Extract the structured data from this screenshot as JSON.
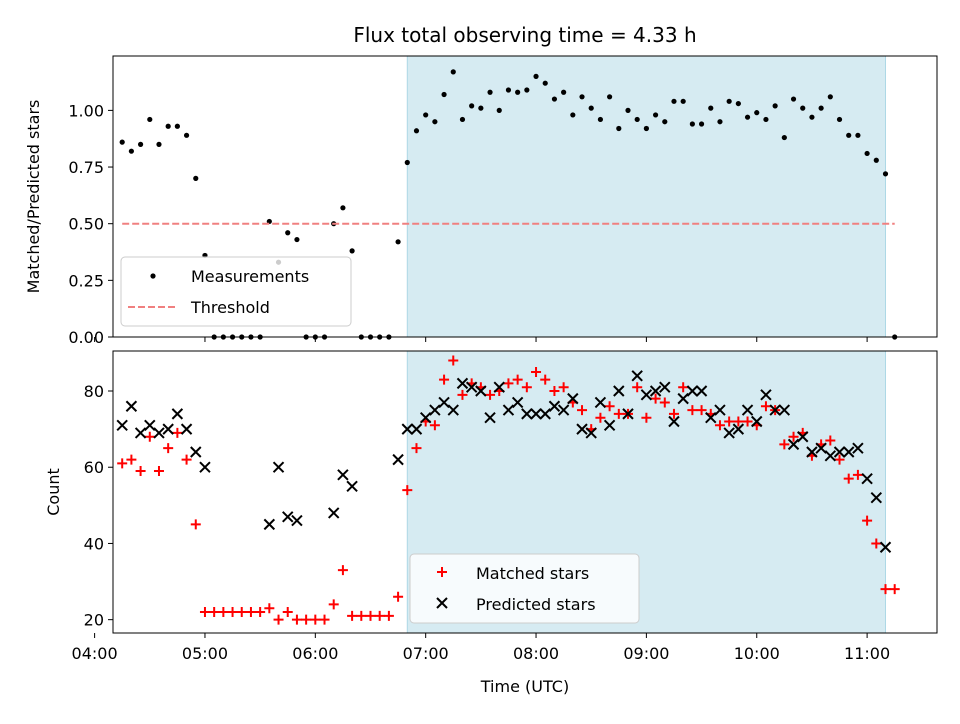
{
  "chart_data": [
    {
      "type": "scatter",
      "title": "Flux total observing time = 4.33 h",
      "xlabel": "",
      "ylabel": "Matched/Predicted stars",
      "xlim": [
        "04:10",
        "11:38"
      ],
      "ylim": [
        0,
        1.24
      ],
      "yticks": [
        "0.00",
        "0.25",
        "0.50",
        "0.75",
        "1.00"
      ],
      "shaded_interval": [
        "06:50",
        "11:10"
      ],
      "shade_color": "#add8e6",
      "legend": {
        "placement": "lower-left",
        "entries": [
          "Measurements",
          "Threshold"
        ]
      },
      "series": [
        {
          "name": "Measurements",
          "marker": "dot",
          "color": "#000000",
          "points": [
            [
              "04:15",
              0.86
            ],
            [
              "04:20",
              0.82
            ],
            [
              "04:25",
              0.85
            ],
            [
              "04:30",
              0.96
            ],
            [
              "04:35",
              0.85
            ],
            [
              "04:40",
              0.93
            ],
            [
              "04:45",
              0.93
            ],
            [
              "04:50",
              0.89
            ],
            [
              "04:55",
              0.7
            ],
            [
              "05:00",
              0.36
            ],
            [
              "05:05",
              0.0
            ],
            [
              "05:10",
              0.0
            ],
            [
              "05:15",
              0.0
            ],
            [
              "05:20",
              0.0
            ],
            [
              "05:25",
              0.0
            ],
            [
              "05:30",
              0.0
            ],
            [
              "05:35",
              0.51
            ],
            [
              "05:40",
              0.33
            ],
            [
              "05:45",
              0.46
            ],
            [
              "05:50",
              0.43
            ],
            [
              "05:55",
              0.0
            ],
            [
              "06:00",
              0.0
            ],
            [
              "06:05",
              0.0
            ],
            [
              "06:10",
              0.5
            ],
            [
              "06:15",
              0.57
            ],
            [
              "06:20",
              0.38
            ],
            [
              "06:25",
              0.0
            ],
            [
              "06:30",
              0.0
            ],
            [
              "06:35",
              0.0
            ],
            [
              "06:40",
              0.0
            ],
            [
              "06:45",
              0.42
            ],
            [
              "06:50",
              0.77
            ],
            [
              "06:55",
              0.91
            ],
            [
              "07:00",
              0.98
            ],
            [
              "07:05",
              0.95
            ],
            [
              "07:10",
              1.07
            ],
            [
              "07:15",
              1.17
            ],
            [
              "07:20",
              0.96
            ],
            [
              "07:25",
              1.02
            ],
            [
              "07:30",
              1.01
            ],
            [
              "07:35",
              1.08
            ],
            [
              "07:40",
              1.0
            ],
            [
              "07:45",
              1.09
            ],
            [
              "07:50",
              1.08
            ],
            [
              "07:55",
              1.09
            ],
            [
              "08:00",
              1.15
            ],
            [
              "08:05",
              1.12
            ],
            [
              "08:10",
              1.05
            ],
            [
              "08:15",
              1.08
            ],
            [
              "08:20",
              0.98
            ],
            [
              "08:25",
              1.06
            ],
            [
              "08:30",
              1.01
            ],
            [
              "08:35",
              0.96
            ],
            [
              "08:40",
              1.06
            ],
            [
              "08:45",
              0.92
            ],
            [
              "08:50",
              1.0
            ],
            [
              "08:55",
              0.96
            ],
            [
              "09:00",
              0.92
            ],
            [
              "09:05",
              0.98
            ],
            [
              "09:10",
              0.95
            ],
            [
              "09:15",
              1.04
            ],
            [
              "09:20",
              1.04
            ],
            [
              "09:25",
              0.94
            ],
            [
              "09:30",
              0.94
            ],
            [
              "09:35",
              1.01
            ],
            [
              "09:40",
              0.95
            ],
            [
              "09:45",
              1.04
            ],
            [
              "09:50",
              1.03
            ],
            [
              "09:55",
              0.97
            ],
            [
              "10:00",
              0.99
            ],
            [
              "10:05",
              0.96
            ],
            [
              "10:10",
              1.02
            ],
            [
              "10:15",
              0.88
            ],
            [
              "10:20",
              1.05
            ],
            [
              "10:25",
              1.01
            ],
            [
              "10:30",
              0.97
            ],
            [
              "10:35",
              1.01
            ],
            [
              "10:40",
              1.06
            ],
            [
              "10:45",
              0.96
            ],
            [
              "10:50",
              0.89
            ],
            [
              "10:55",
              0.89
            ],
            [
              "11:00",
              0.81
            ],
            [
              "11:05",
              0.78
            ],
            [
              "11:10",
              0.72
            ],
            [
              "11:15",
              0.0
            ]
          ]
        },
        {
          "name": "Threshold",
          "type": "line",
          "style": "dashed",
          "color": "#f08080",
          "points": [
            [
              "04:15",
              0.5
            ],
            [
              "11:15",
              0.5
            ]
          ]
        }
      ]
    },
    {
      "type": "scatter",
      "title": "",
      "xlabel": "Time (UTC)",
      "ylabel": "Count",
      "xlim": [
        "04:10",
        "11:38"
      ],
      "ylim": [
        16.5,
        90.5
      ],
      "yticks": [
        "20",
        "40",
        "60",
        "80"
      ],
      "xticks": [
        "04:00",
        "05:00",
        "06:00",
        "07:00",
        "08:00",
        "09:00",
        "10:00",
        "11:00"
      ],
      "shaded_interval": [
        "06:50",
        "11:10"
      ],
      "shade_color": "#add8e6",
      "legend": {
        "placement": "lower-center",
        "entries": [
          "Matched stars",
          "Predicted stars"
        ]
      },
      "series": [
        {
          "name": "Matched stars",
          "marker": "plus",
          "color": "#ff0000",
          "points": [
            [
              "04:15",
              61
            ],
            [
              "04:20",
              62
            ],
            [
              "04:25",
              59
            ],
            [
              "04:30",
              68
            ],
            [
              "04:35",
              59
            ],
            [
              "04:40",
              65
            ],
            [
              "04:45",
              69
            ],
            [
              "04:50",
              62
            ],
            [
              "04:55",
              45
            ],
            [
              "05:00",
              22
            ],
            [
              "05:05",
              22
            ],
            [
              "05:10",
              22
            ],
            [
              "05:15",
              22
            ],
            [
              "05:20",
              22
            ],
            [
              "05:25",
              22
            ],
            [
              "05:30",
              22
            ],
            [
              "05:35",
              23
            ],
            [
              "05:40",
              20
            ],
            [
              "05:45",
              22
            ],
            [
              "05:50",
              20
            ],
            [
              "05:55",
              20
            ],
            [
              "06:00",
              20
            ],
            [
              "06:05",
              20
            ],
            [
              "06:10",
              24
            ],
            [
              "06:15",
              33
            ],
            [
              "06:20",
              21
            ],
            [
              "06:25",
              21
            ],
            [
              "06:30",
              21
            ],
            [
              "06:35",
              21
            ],
            [
              "06:40",
              21
            ],
            [
              "06:45",
              26
            ],
            [
              "06:50",
              54
            ],
            [
              "06:55",
              65
            ],
            [
              "07:00",
              72
            ],
            [
              "07:05",
              71
            ],
            [
              "07:10",
              83
            ],
            [
              "07:15",
              88
            ],
            [
              "07:20",
              79
            ],
            [
              "07:25",
              82
            ],
            [
              "07:30",
              81
            ],
            [
              "07:35",
              79
            ],
            [
              "07:40",
              80
            ],
            [
              "07:45",
              82
            ],
            [
              "07:50",
              83
            ],
            [
              "07:55",
              81
            ],
            [
              "08:00",
              85
            ],
            [
              "08:05",
              83
            ],
            [
              "08:10",
              80
            ],
            [
              "08:15",
              81
            ],
            [
              "08:20",
              77
            ],
            [
              "08:25",
              75
            ],
            [
              "08:30",
              70
            ],
            [
              "08:35",
              73
            ],
            [
              "08:40",
              76
            ],
            [
              "08:45",
              74
            ],
            [
              "08:50",
              74
            ],
            [
              "08:55",
              81
            ],
            [
              "09:00",
              73
            ],
            [
              "09:05",
              78
            ],
            [
              "09:10",
              77
            ],
            [
              "09:15",
              74
            ],
            [
              "09:20",
              81
            ],
            [
              "09:25",
              75
            ],
            [
              "09:30",
              75
            ],
            [
              "09:35",
              74
            ],
            [
              "09:40",
              71
            ],
            [
              "09:45",
              72
            ],
            [
              "09:50",
              72
            ],
            [
              "09:55",
              72
            ],
            [
              "10:00",
              71
            ],
            [
              "10:05",
              76
            ],
            [
              "10:10",
              75
            ],
            [
              "10:15",
              66
            ],
            [
              "10:20",
              68
            ],
            [
              "10:25",
              69
            ],
            [
              "10:30",
              63
            ],
            [
              "10:35",
              66
            ],
            [
              "10:40",
              67
            ],
            [
              "10:45",
              62
            ],
            [
              "10:50",
              57
            ],
            [
              "10:55",
              58
            ],
            [
              "11:00",
              46
            ],
            [
              "11:05",
              40
            ],
            [
              "11:10",
              28
            ],
            [
              "11:15",
              28
            ]
          ]
        },
        {
          "name": "Predicted stars",
          "marker": "x",
          "color": "#000000",
          "points": [
            [
              "04:15",
              71
            ],
            [
              "04:20",
              76
            ],
            [
              "04:25",
              69
            ],
            [
              "04:30",
              71
            ],
            [
              "04:35",
              69
            ],
            [
              "04:40",
              70
            ],
            [
              "04:45",
              74
            ],
            [
              "04:50",
              70
            ],
            [
              "04:55",
              64
            ],
            [
              "05:00",
              60
            ],
            [
              "05:35",
              45
            ],
            [
              "05:40",
              60
            ],
            [
              "05:45",
              47
            ],
            [
              "05:50",
              46
            ],
            [
              "06:10",
              48
            ],
            [
              "06:15",
              58
            ],
            [
              "06:20",
              55
            ],
            [
              "06:45",
              62
            ],
            [
              "06:50",
              70
            ],
            [
              "06:55",
              70
            ],
            [
              "07:00",
              73
            ],
            [
              "07:05",
              75
            ],
            [
              "07:10",
              77
            ],
            [
              "07:15",
              75
            ],
            [
              "07:20",
              82
            ],
            [
              "07:25",
              81
            ],
            [
              "07:30",
              80
            ],
            [
              "07:35",
              73
            ],
            [
              "07:40",
              81
            ],
            [
              "07:45",
              75
            ],
            [
              "07:50",
              77
            ],
            [
              "07:55",
              74
            ],
            [
              "08:00",
              74
            ],
            [
              "08:05",
              74
            ],
            [
              "08:10",
              76
            ],
            [
              "08:15",
              75
            ],
            [
              "08:20",
              78
            ],
            [
              "08:25",
              70
            ],
            [
              "08:30",
              69
            ],
            [
              "08:35",
              77
            ],
            [
              "08:40",
              71
            ],
            [
              "08:45",
              80
            ],
            [
              "08:50",
              74
            ],
            [
              "08:55",
              84
            ],
            [
              "09:00",
              79
            ],
            [
              "09:05",
              80
            ],
            [
              "09:10",
              81
            ],
            [
              "09:15",
              72
            ],
            [
              "09:20",
              78
            ],
            [
              "09:25",
              80
            ],
            [
              "09:30",
              80
            ],
            [
              "09:35",
              73
            ],
            [
              "09:40",
              75
            ],
            [
              "09:45",
              69
            ],
            [
              "09:50",
              70
            ],
            [
              "09:55",
              75
            ],
            [
              "10:00",
              72
            ],
            [
              "10:05",
              79
            ],
            [
              "10:10",
              75
            ],
            [
              "10:15",
              75
            ],
            [
              "10:20",
              66
            ],
            [
              "10:25",
              68
            ],
            [
              "10:30",
              64
            ],
            [
              "10:35",
              65
            ],
            [
              "10:40",
              63
            ],
            [
              "10:45",
              64
            ],
            [
              "10:50",
              64
            ],
            [
              "10:55",
              65
            ],
            [
              "11:00",
              57
            ],
            [
              "11:05",
              52
            ],
            [
              "11:10",
              39
            ]
          ]
        }
      ]
    }
  ]
}
